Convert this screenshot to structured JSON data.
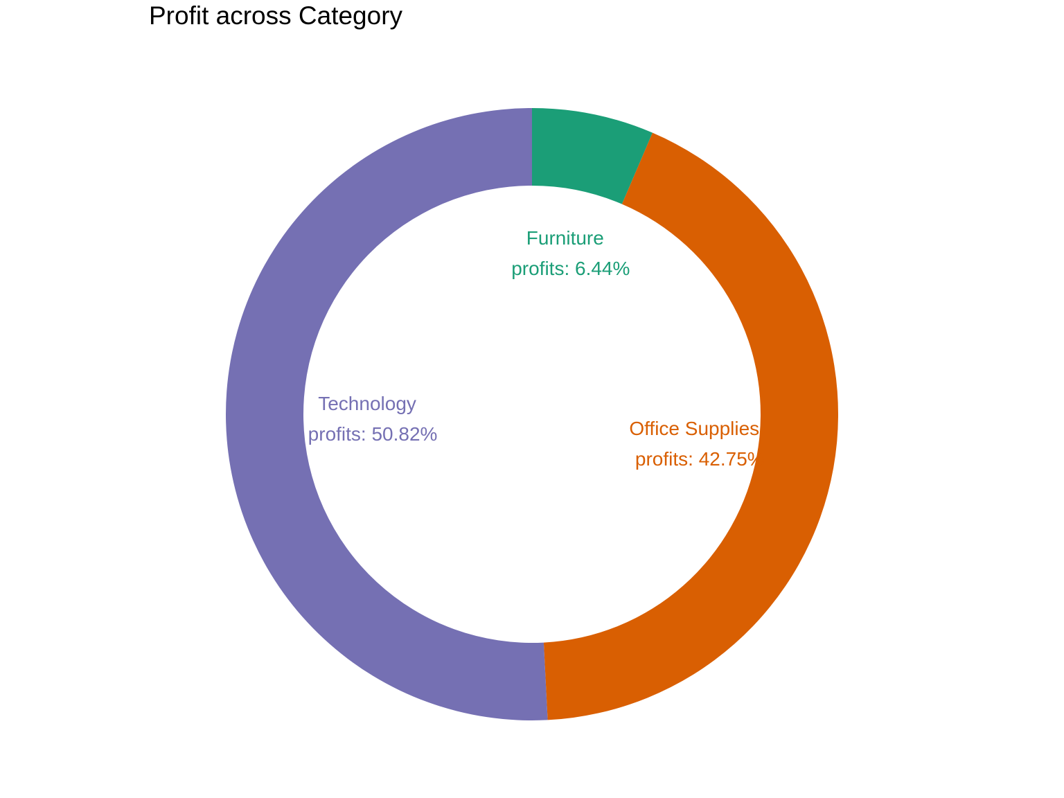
{
  "chart_data": {
    "type": "pie",
    "variant": "donut",
    "title": "Profit across Category",
    "categories": [
      "Furniture",
      "Office Supplies",
      "Technology"
    ],
    "values": [
      6.44,
      42.75,
      50.82
    ],
    "unit": "%",
    "colors": [
      "#1b9e77",
      "#d95f02",
      "#7570b3"
    ],
    "labels": [
      {
        "category": "Furniture",
        "value_text": "profits: 6.44%"
      },
      {
        "category": "Office Supplies",
        "value_text": "profits: 42.75%"
      },
      {
        "category": "Technology",
        "value_text": "profits: 50.82%"
      }
    ],
    "legend": "none"
  }
}
